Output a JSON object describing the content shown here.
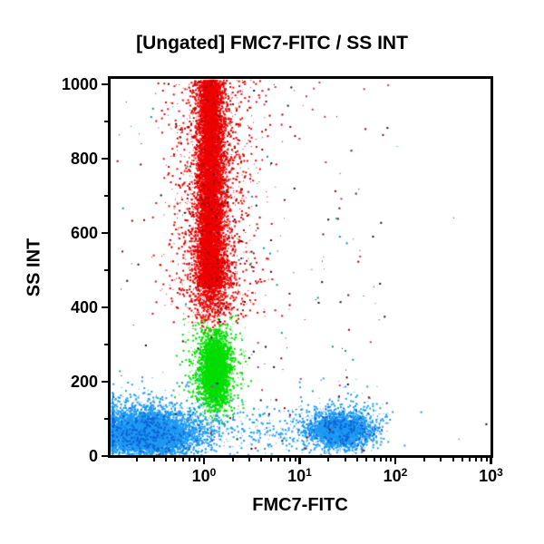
{
  "chart_data": {
    "type": "scatter",
    "title": "[Ungated] FMC7-FITC / SS INT",
    "x_axis": {
      "label": "FMC7-FITC",
      "scale": "log",
      "min": 0.105,
      "max": 1000,
      "major_tick_exponents": [
        0,
        1,
        2,
        3
      ],
      "minor_ticks": "log multiples 2-9 per decade"
    },
    "y_axis": {
      "label": "SS INT",
      "scale": "linear",
      "min": 0,
      "max": 1000,
      "major_ticks": [
        0,
        200,
        400,
        600,
        800,
        1000
      ],
      "minor_tick_step": 100
    },
    "legend": "none",
    "grid": false,
    "populations": [
      {
        "name": "granulocytes-red-band",
        "color": "#ee0000",
        "x_center_value": 1.15,
        "y_range": [
          350,
          1000
        ],
        "parts": [
          {
            "n": 7500,
            "x": {
              "dist": "gauss",
              "mean": 0.062,
              "sd": 0.068
            },
            "y": {
              "dist": "uniform",
              "min": 455,
              "max": 1013
            }
          },
          {
            "n": 1000,
            "x": {
              "dist": "gauss",
              "mean": 0.062,
              "sd": 0.085
            },
            "y": {
              "dist": "gauss",
              "mean": 480,
              "sd": 60,
              "min": 330,
              "max": 620
            }
          },
          {
            "n": 1300,
            "x": {
              "dist": "gauss",
              "mean": 0.09,
              "sd": 0.24,
              "min": -0.85,
              "max": 1.3
            },
            "y": {
              "dist": "uniform",
              "min": 360,
              "max": 1013
            }
          },
          {
            "n": 450,
            "color": "#aa0000",
            "x": {
              "dist": "gauss",
              "mean": 0.1,
              "sd": 0.2
            },
            "y": {
              "dist": "uniform",
              "min": 380,
              "max": 1013
            }
          }
        ]
      },
      {
        "name": "monocytes-green-blob",
        "color": "#00dd00",
        "x_center_value": 1.25,
        "y_range": [
          110,
          360
        ],
        "parts": [
          {
            "n": 2900,
            "x": {
              "dist": "gauss",
              "mean": 0.105,
              "sd": 0.075
            },
            "y": {
              "dist": "gauss",
              "mean": 233,
              "sd": 48,
              "min": 118,
              "max": 356
            }
          },
          {
            "n": 620,
            "x": {
              "dist": "gauss",
              "mean": 0.1,
              "sd": 0.15
            },
            "y": {
              "dist": "gauss",
              "mean": 230,
              "sd": 78,
              "min": 90,
              "max": 385
            }
          }
        ]
      },
      {
        "name": "lymphocytes-blue-left",
        "color": "#1e9af2",
        "x_center_value": 0.24,
        "y_range": [
          0,
          160
        ],
        "parts": [
          {
            "n": 5200,
            "x": {
              "dist": "gauss",
              "mean": -0.62,
              "sd": 0.26,
              "min": -0.972,
              "max": 0.15,
              "pile": true
            },
            "y": {
              "dist": "gauss",
              "mean": 62,
              "sd": 29,
              "min": 4,
              "max": 170
            }
          },
          {
            "n": 900,
            "x": {
              "dist": "gauss",
              "mean": -0.58,
              "sd": 0.34,
              "min": -0.972,
              "max": 0.5,
              "pile": true
            },
            "y": {
              "dist": "gauss",
              "mean": 85,
              "sd": 48,
              "min": 2,
              "max": 235
            }
          },
          {
            "n": 380,
            "color": "#0b5fd6",
            "x": {
              "dist": "gauss",
              "mean": -0.62,
              "sd": 0.25,
              "min": -0.972,
              "max": 0.1,
              "pile": true
            },
            "y": {
              "dist": "gauss",
              "mean": 62,
              "sd": 30,
              "min": 4,
              "max": 170
            }
          },
          {
            "n": 260,
            "x": {
              "dist": "uniform",
              "min": -0.15,
              "max": 1.05
            },
            "y": {
              "dist": "gauss",
              "mean": 70,
              "sd": 33,
              "min": 3,
              "max": 190
            }
          }
        ]
      },
      {
        "name": "fmc7-positive-blue-right",
        "color": "#1e9af2",
        "x_center_value": 26,
        "y_range": [
          10,
          160
        ],
        "parts": [
          {
            "n": 2300,
            "x": {
              "dist": "gauss",
              "mean": 1.42,
              "sd": 0.17,
              "min": 0.85,
              "max": 2.25
            },
            "y": {
              "dist": "gauss",
              "mean": 72,
              "sd": 24,
              "min": 6,
              "max": 165
            }
          },
          {
            "n": 360,
            "x": {
              "dist": "gauss",
              "mean": 1.44,
              "sd": 0.27,
              "min": 0.8,
              "max": 2.5
            },
            "y": {
              "dist": "gauss",
              "mean": 85,
              "sd": 40,
              "min": 4,
              "max": 215
            }
          },
          {
            "n": 190,
            "color": "#0b5fd6",
            "x": {
              "dist": "gauss",
              "mean": 1.42,
              "sd": 0.17
            },
            "y": {
              "dist": "gauss",
              "mean": 72,
              "sd": 24,
              "min": 6,
              "max": 160
            }
          }
        ]
      },
      {
        "name": "sparse-debris-noise",
        "color": "#111111",
        "parts": [
          {
            "n": 240,
            "colors": [
              "#111111",
              "#111111",
              "#8b0000",
              "#8b0000",
              "#cc3366",
              "#009999"
            ],
            "x": {
              "dist": "gauss",
              "mean": 0.55,
              "sd": 0.8,
              "min": -0.95,
              "max": 2.95
            },
            "y": {
              "dist": "uniform",
              "min": 15,
              "max": 1010
            }
          }
        ]
      }
    ]
  },
  "colors": {
    "background": "#ffffff",
    "axis": "#000000",
    "text": "#000000",
    "red_population": "#ee0000",
    "green_population": "#00dd00",
    "blue_population": "#1e9af2"
  }
}
